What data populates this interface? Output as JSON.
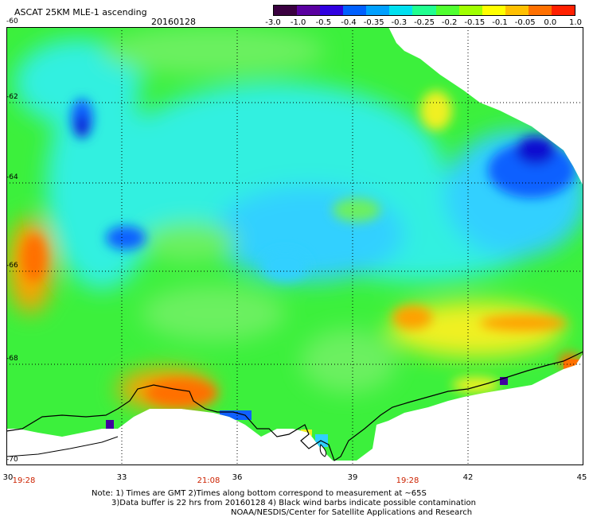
{
  "title": "ASCAT 25KM MLE-1 ascending",
  "date": "20160128",
  "colorbar": {
    "labels": [
      "-3.0",
      "-1.0",
      "-0.5",
      "-0.4",
      "-0.35",
      "-0.3",
      "-0.25",
      "-0.2",
      "-0.15",
      "-0.1",
      "-0.05",
      "0.0",
      "1.0"
    ],
    "colors": [
      "#3a0040",
      "#5a00a0",
      "#3000e0",
      "#0060ff",
      "#00a0ff",
      "#00e0f0",
      "#20ff90",
      "#50ff30",
      "#a0ff00",
      "#ffff00",
      "#ffc000",
      "#ff7000",
      "#ff2000"
    ]
  },
  "map": {
    "lat_labels": [
      "-60",
      "-62",
      "-64",
      "-66",
      "-68",
      "-70"
    ],
    "lon_labels": [
      "30",
      "33",
      "36",
      "39",
      "42",
      "45"
    ],
    "time_labels": [
      "19:28",
      "21:08",
      "19:28"
    ],
    "land_color": "#ffffff",
    "field_colors": {
      "green": "#3cf03c",
      "light_green": "#6cf060",
      "cyan": "#30f0e0",
      "light_blue": "#30d0ff",
      "blue": "#1060ff",
      "dark_blue": "#1010d0",
      "yellow": "#f0f020",
      "orange": "#ffa000",
      "dark_orange": "#ff7000",
      "red": "#ff4000",
      "purple": "#4000a0"
    }
  },
  "notes": {
    "line1": "Note: 1) Times are GMT 2)Times along bottom correspond to measurement at ~65S",
    "line2": "3)Data buffer is 22 hrs from 20160128 4) Black wind barbs indicate possible contamination",
    "line3": "NOAA/NESDIS/Center for Satellite Applications and Research"
  }
}
